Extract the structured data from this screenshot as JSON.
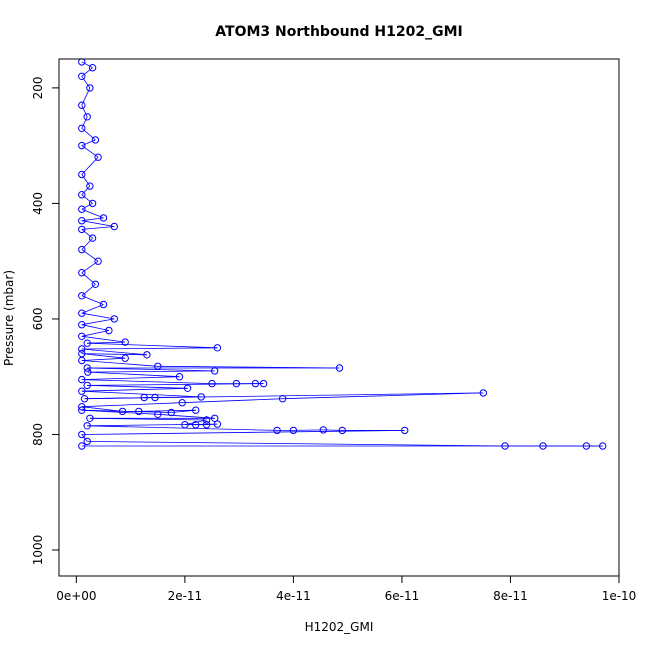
{
  "chart_data": {
    "type": "scatter",
    "title": "ATOM3 Northbound H1202_GMI",
    "xlabel": "H1202_GMI",
    "ylabel": "Pressure (mbar)",
    "xlim": [
      -3.2e-12,
      1e-10
    ],
    "ylim": [
      1045,
      150
    ],
    "y_reversed": true,
    "xticks": [
      0,
      2e-11,
      4e-11,
      6e-11,
      8e-11,
      1e-10
    ],
    "xtick_labels": [
      "0e+00",
      "2e-11",
      "4e-11",
      "6e-11",
      "8e-11",
      "1e-10"
    ],
    "yticks": [
      200,
      400,
      600,
      800,
      1000
    ],
    "ytick_labels": [
      "200",
      "400",
      "600",
      "800",
      "1000"
    ],
    "grid": false,
    "marker": "open-circle",
    "connected": true,
    "color": "#0000ff",
    "series": [
      {
        "points": [
          [
            1e-12,
            820
          ],
          [
            9.7e-11,
            820
          ],
          [
            9.4e-11,
            820
          ],
          [
            8.6e-11,
            820
          ],
          [
            7.9e-11,
            820
          ],
          [
            2e-12,
            812
          ],
          [
            1e-12,
            800
          ],
          [
            6.05e-11,
            793
          ],
          [
            4.9e-11,
            793
          ],
          [
            4.55e-11,
            792
          ],
          [
            4e-11,
            793
          ],
          [
            3.7e-11,
            793
          ],
          [
            2e-12,
            785
          ],
          [
            2.6e-11,
            782
          ],
          [
            2.4e-11,
            783
          ],
          [
            2.2e-11,
            783
          ],
          [
            2e-11,
            783
          ],
          [
            2.4e-11,
            775
          ],
          [
            2.5e-12,
            772
          ],
          [
            2.55e-11,
            772
          ],
          [
            1.5e-11,
            765
          ],
          [
            1e-12,
            758
          ],
          [
            1.75e-11,
            762
          ],
          [
            2.2e-11,
            758
          ],
          [
            1.15e-11,
            760
          ],
          [
            8.5e-12,
            760
          ],
          [
            1e-12,
            752
          ],
          [
            1.95e-11,
            745
          ],
          [
            3.8e-11,
            738
          ],
          [
            7.5e-11,
            728
          ],
          [
            1.5e-12,
            738
          ],
          [
            1.45e-11,
            736
          ],
          [
            1.25e-11,
            736
          ],
          [
            2.3e-11,
            735
          ],
          [
            1e-12,
            725
          ],
          [
            2.05e-11,
            720
          ],
          [
            2e-12,
            715
          ],
          [
            3.45e-11,
            712
          ],
          [
            3.3e-11,
            712
          ],
          [
            2.95e-11,
            712
          ],
          [
            2.5e-11,
            712
          ],
          [
            1e-12,
            705
          ],
          [
            1.9e-11,
            700
          ],
          [
            2.1e-12,
            692
          ],
          [
            2.55e-11,
            690
          ],
          [
            2e-12,
            685
          ],
          [
            4.85e-11,
            685
          ],
          [
            1.5e-11,
            682
          ],
          [
            1e-12,
            672
          ],
          [
            9e-12,
            668
          ],
          [
            1e-12,
            660
          ],
          [
            1.3e-11,
            662
          ],
          [
            1e-12,
            652
          ],
          [
            2.6e-11,
            650
          ],
          [
            2e-12,
            642
          ],
          [
            9e-12,
            640
          ],
          [
            1e-12,
            630
          ],
          [
            6e-12,
            620
          ],
          [
            1e-12,
            610
          ],
          [
            7e-12,
            600
          ],
          [
            1e-12,
            590
          ],
          [
            5e-12,
            575
          ],
          [
            1e-12,
            560
          ],
          [
            3.5e-12,
            540
          ],
          [
            1e-12,
            520
          ],
          [
            4e-12,
            500
          ],
          [
            1e-12,
            480
          ],
          [
            3e-12,
            460
          ],
          [
            1e-12,
            445
          ],
          [
            7e-12,
            440
          ],
          [
            1e-12,
            430
          ],
          [
            5e-12,
            425
          ],
          [
            1e-12,
            410
          ],
          [
            3e-12,
            400
          ],
          [
            1e-12,
            385
          ],
          [
            2.5e-12,
            370
          ],
          [
            1e-12,
            350
          ],
          [
            4e-12,
            320
          ],
          [
            1e-12,
            300
          ],
          [
            3.5e-12,
            290
          ],
          [
            1e-12,
            270
          ],
          [
            2e-12,
            250
          ],
          [
            1e-12,
            230
          ],
          [
            2.5e-12,
            200
          ],
          [
            1e-12,
            180
          ],
          [
            3e-12,
            165
          ],
          [
            1e-12,
            155
          ]
        ]
      }
    ]
  }
}
